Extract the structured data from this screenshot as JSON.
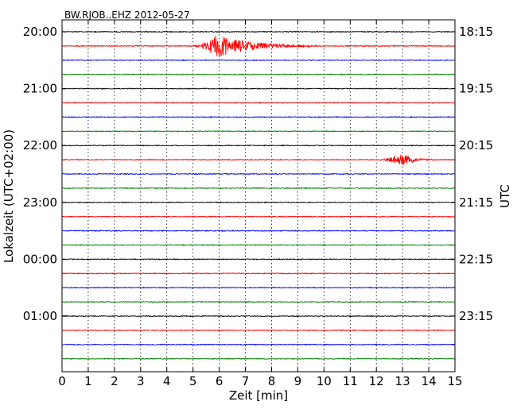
{
  "chart_data": {
    "type": "line",
    "subtype": "dayplot",
    "title": "BW.RJOB..EHZ 2012-05-27",
    "xlabel": "Zeit  [min]",
    "ylabel_left": "Lokalzeit (UTC+02:00)",
    "ylabel_right": "UTC",
    "xlim": [
      0,
      15
    ],
    "x_ticks": [
      0,
      1,
      2,
      3,
      4,
      5,
      6,
      7,
      8,
      9,
      10,
      11,
      12,
      13,
      14,
      15
    ],
    "vertical_gridlines": "dotted, every minute",
    "rows": 24,
    "row_interval_minutes": 15,
    "trace_colors": [
      "#000000",
      "#ff0000",
      "#0000ff",
      "#008000"
    ],
    "left_tick_labels": [
      {
        "row": 0,
        "label": "20:00"
      },
      {
        "row": 4,
        "label": "21:00"
      },
      {
        "row": 8,
        "label": "22:00"
      },
      {
        "row": 12,
        "label": "23:00"
      },
      {
        "row": 16,
        "label": "00:00"
      },
      {
        "row": 20,
        "label": "01:00"
      }
    ],
    "right_tick_labels": [
      {
        "row": 0,
        "label": "18:15"
      },
      {
        "row": 4,
        "label": "19:15"
      },
      {
        "row": 8,
        "label": "20:15"
      },
      {
        "row": 12,
        "label": "21:15"
      },
      {
        "row": 16,
        "label": "22:15"
      },
      {
        "row": 20,
        "label": "23:15"
      }
    ],
    "events": [
      {
        "row": 1,
        "onset_min": 5.0,
        "peak_min": 5.9,
        "end_min": 9.8,
        "peak_amplitude_rows": 0.8
      },
      {
        "row": 9,
        "onset_min": 12.0,
        "peak_min": 13.0,
        "end_min": 14.2,
        "peak_amplitude_rows": 0.4
      }
    ],
    "background_noise_amplitude_rows": 0.03
  }
}
